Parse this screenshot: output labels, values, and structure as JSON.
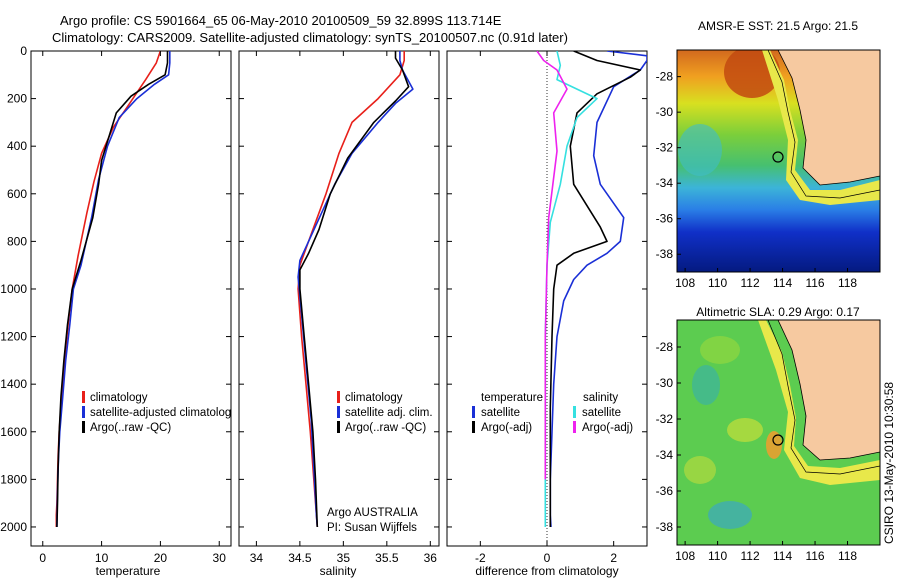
{
  "figure": {
    "title_line1": "Argo profile: CS 5901664_65 06-May-2010 20100509_59 32.899S 113.714E",
    "title_line2": "Climatology: CARS2009. Satellite-adjusted climatology: synTS_20100507.nc (0.91d later)",
    "credit": "CSIRO 13-May-2010 10:30:58",
    "colors": {
      "climatology": "#e8201a",
      "satellite": "#1a2fd6",
      "argo": "#000000",
      "salinity_satellite": "#35e0e0",
      "salinity_argo": "#ee22ee"
    }
  },
  "chart_data": [
    {
      "type": "line",
      "xlabel": "temperature",
      "ylabel": "",
      "xlim": [
        -2,
        32
      ],
      "ylim": [
        2080,
        0
      ],
      "y_inverted": true,
      "grid": false,
      "x_ticks": [
        "0",
        "10",
        "20",
        "30"
      ],
      "y_ticks": [
        "0",
        "200",
        "400",
        "600",
        "800",
        "1000",
        "1200",
        "1400",
        "1600",
        "1800",
        "2000"
      ],
      "legend": [
        "climatology",
        "satellite-adjusted climatolog",
        "Argo(..raw -QC)"
      ],
      "legend_position": "lower-right",
      "series": [
        {
          "name": "climatology",
          "color": "red",
          "x": [
            20,
            19.3,
            17.5,
            14.5,
            12,
            10,
            8.7,
            7.5,
            6,
            5,
            4.3,
            3.7,
            3.2,
            2.8,
            2.6,
            2.5,
            2.4,
            2.3,
            2.3
          ],
          "y": [
            0,
            50,
            120,
            230,
            320,
            430,
            550,
            680,
            860,
            1000,
            1150,
            1300,
            1450,
            1600,
            1700,
            1800,
            1900,
            1950,
            2000
          ]
        },
        {
          "name": "satellite-adjusted climatolog",
          "color": "blue",
          "x": [
            21.6,
            21.6,
            21.4,
            19,
            16,
            13,
            11,
            9.5,
            8.3,
            6.5,
            5.2,
            4.6,
            3.9,
            3.4,
            2.9,
            2.7,
            2.55,
            2.45,
            2.4
          ],
          "y": [
            0,
            50,
            100,
            140,
            200,
            280,
            400,
            540,
            700,
            900,
            1000,
            1150,
            1300,
            1450,
            1600,
            1700,
            1800,
            1900,
            2000
          ]
        },
        {
          "name": "Argo(..raw -QC)",
          "color": "black",
          "x": [
            21.2,
            21.2,
            20.8,
            18,
            15,
            12.5,
            11,
            10,
            9.5,
            8.5,
            6.5,
            5,
            4.2,
            3.6,
            3.1,
            2.8,
            2.6,
            2.5,
            2.4
          ],
          "y": [
            0,
            50,
            100,
            140,
            190,
            260,
            380,
            460,
            560,
            700,
            880,
            1000,
            1150,
            1300,
            1450,
            1600,
            1750,
            1900,
            2000
          ]
        }
      ]
    },
    {
      "type": "line",
      "xlabel": "salinity",
      "xlim": [
        33.8,
        36.1
      ],
      "ylim": [
        2080,
        0
      ],
      "y_inverted": true,
      "grid": false,
      "x_ticks": [
        "34",
        "34.5",
        "35",
        "35.5",
        "36"
      ],
      "legend": [
        "climatology",
        "satellite adj. clim.",
        "Argo(..raw -QC)"
      ],
      "legend_position": "lower-right",
      "annotations": [
        "Argo AUSTRALIA",
        "PI: Susan Wijffels"
      ],
      "series": [
        {
          "name": "climatology",
          "color": "red",
          "x": [
            35.7,
            35.7,
            35.65,
            35.4,
            35.1,
            34.95,
            34.8,
            34.65,
            34.5,
            34.48,
            34.52,
            34.57,
            34.62,
            34.66,
            34.7
          ],
          "y": [
            0,
            40,
            100,
            200,
            300,
            430,
            600,
            750,
            900,
            1000,
            1200,
            1400,
            1600,
            1800,
            2000
          ]
        },
        {
          "name": "satellite adj. clim.",
          "color": "blue",
          "x": [
            35.65,
            35.65,
            35.68,
            35.8,
            35.6,
            35.4,
            35.1,
            34.9,
            34.7,
            34.5,
            34.48,
            34.53,
            34.58,
            34.63,
            34.66,
            34.69,
            34.7
          ],
          "y": [
            0,
            40,
            80,
            160,
            220,
            300,
            430,
            560,
            720,
            880,
            950,
            1150,
            1350,
            1550,
            1750,
            1950,
            2000
          ]
        },
        {
          "name": "Argo(..raw -QC)",
          "color": "black",
          "x": [
            35.6,
            35.6,
            35.68,
            35.75,
            35.6,
            35.35,
            35.05,
            34.85,
            34.72,
            34.6,
            34.5,
            34.5,
            34.55,
            34.6,
            34.65,
            34.68,
            34.7
          ],
          "y": [
            0,
            30,
            80,
            150,
            210,
            300,
            450,
            600,
            750,
            850,
            920,
            1000,
            1200,
            1400,
            1600,
            1800,
            2000
          ]
        }
      ]
    },
    {
      "type": "line",
      "xlabel": "difference from climatology",
      "xlim": [
        -3,
        3
      ],
      "ylim": [
        2080,
        0
      ],
      "y_inverted": true,
      "grid": false,
      "x_ticks": [
        "-2",
        "0",
        "2"
      ],
      "legend_temperature_header": "temperature",
      "legend_salinity_header": "salinity",
      "legend": [
        "satellite",
        "Argo(-adj)",
        "satellite",
        "Argo(-adj)"
      ],
      "legend_position": "lower-center",
      "series": [
        {
          "name": "temperature satellite",
          "color": "blue",
          "x": [
            1.8,
            3,
            3,
            2.8,
            2,
            1.5,
            1.4,
            1.6,
            2.3,
            2.2,
            1.8,
            1.2,
            0.8,
            0.5,
            0.3,
            0.2,
            0.15,
            0.1,
            0.1,
            0.12
          ],
          "y": [
            0,
            20,
            40,
            80,
            150,
            300,
            440,
            560,
            700,
            800,
            850,
            900,
            960,
            1050,
            1200,
            1400,
            1600,
            1800,
            1950,
            2000
          ]
        },
        {
          "name": "temperature Argo(-adj)",
          "color": "black",
          "x": [
            0.8,
            1.5,
            2.8,
            2.5,
            1.5,
            0.9,
            0.7,
            0.8,
            1.6,
            1.8,
            0.8,
            0.3,
            0.2,
            0.15,
            0.1,
            0.1,
            0.1
          ],
          "y": [
            0,
            40,
            80,
            110,
            180,
            260,
            400,
            560,
            740,
            800,
            850,
            900,
            1000,
            1200,
            1500,
            1800,
            2000
          ]
        },
        {
          "name": "salinity satellite",
          "color": "cyan",
          "x": [
            0.3,
            0.4,
            0.3,
            1.5,
            0.9,
            0.6,
            0.4,
            0.1,
            0,
            -0.05,
            -0.05,
            -0.05
          ],
          "y": [
            0,
            60,
            120,
            200,
            280,
            400,
            560,
            720,
            900,
            1200,
            1600,
            2000
          ]
        },
        {
          "name": "salinity Argo(-adj)",
          "color": "magenta",
          "x": [
            -0.3,
            -0.1,
            0.3,
            0.6,
            0.2,
            0.3,
            0.05,
            0,
            -0.05,
            -0.05
          ],
          "y": [
            0,
            40,
            80,
            160,
            260,
            420,
            700,
            900,
            1200,
            1800
          ]
        }
      ]
    },
    {
      "type": "heatmap",
      "title": "AMSR-E SST: 21.5 Argo: 21.5",
      "x_ticks": [
        "108",
        "110",
        "112",
        "114",
        "116",
        "118"
      ],
      "y_ticks": [
        "-28",
        "-30",
        "-32",
        "-34",
        "-36",
        "-38"
      ],
      "xlim": [
        107.5,
        120
      ],
      "ylim": [
        -39,
        -26.5
      ],
      "float_position": {
        "lon": 113.714,
        "lat": -32.899
      }
    },
    {
      "type": "heatmap",
      "title": "Altimetric SLA: 0.29 Argo: 0.17",
      "x_ticks": [
        "108",
        "110",
        "112",
        "114",
        "116",
        "118"
      ],
      "y_ticks": [
        "-28",
        "-30",
        "-32",
        "-34",
        "-36",
        "-38"
      ],
      "xlim": [
        107.5,
        120
      ],
      "ylim": [
        -39,
        -26.5
      ],
      "float_position": {
        "lon": 113.714,
        "lat": -32.899
      }
    }
  ]
}
